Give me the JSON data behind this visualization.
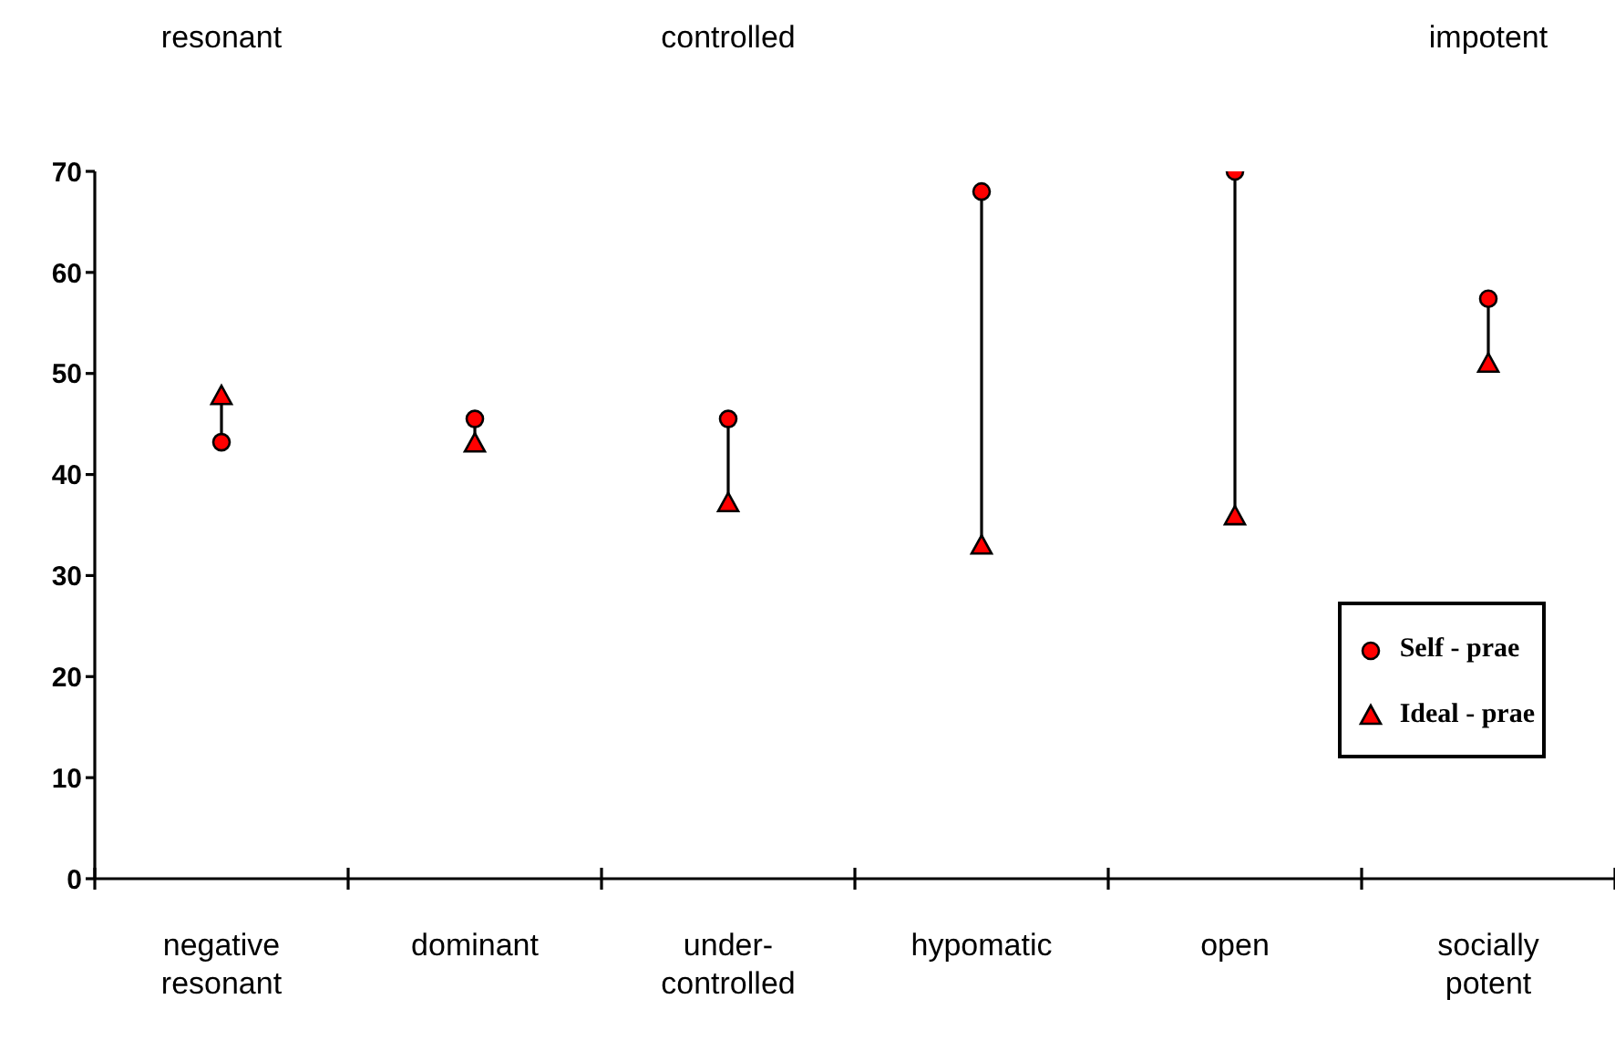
{
  "chart_data": {
    "type": "scatter",
    "categories": [
      "negative resonant",
      "dominant",
      "under-controlled",
      "hypomatic",
      "open",
      "socially potent"
    ],
    "series": [
      {
        "name": "Self - prae",
        "color": "#ff0000",
        "marker": "circle",
        "values": [
          43.2,
          45.5,
          45.5,
          68,
          70,
          57.4
        ]
      },
      {
        "name": "Ideal - prae",
        "color": "#ff0000",
        "marker": "triangle",
        "values": [
          47.7,
          43,
          37.1,
          32.9,
          35.8,
          50.9
        ]
      }
    ],
    "annotations": [
      "resonant",
      "controlled",
      "impotent"
    ],
    "ylim": [
      0,
      70
    ],
    "yticks": [
      0,
      10,
      20,
      30,
      40,
      50,
      60,
      70
    ],
    "grid": false,
    "legend": "right"
  }
}
